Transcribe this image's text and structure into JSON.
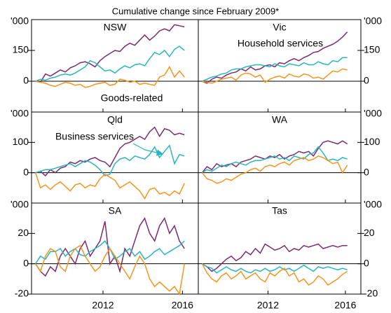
{
  "chart_data": {
    "type": "line",
    "subtitle": "Cumulative change since February 2009*",
    "x": [
      2009.1,
      2009.35,
      2009.6,
      2009.85,
      2010.1,
      2010.35,
      2010.6,
      2010.85,
      2011.1,
      2011.35,
      2011.6,
      2011.85,
      2012.1,
      2012.35,
      2012.6,
      2012.85,
      2013.1,
      2013.35,
      2013.6,
      2013.85,
      2014.1,
      2014.35,
      2014.6,
      2014.85,
      2015.1,
      2015.35,
      2015.6,
      2015.85,
      2016.1,
      2016.35,
      2016.6
    ],
    "xlim": [
      2008.9,
      2017.3
    ],
    "xticks": [
      {
        "value": 2012.5,
        "label": "2012"
      },
      {
        "value": 2016.5,
        "label": "2016"
      }
    ],
    "panels": [
      {
        "title": "NSW",
        "unit": "'000",
        "ylim": [
          -150,
          300
        ],
        "yticks": [
          0,
          150
        ],
        "series": [
          {
            "color": "#7d2a6f",
            "values": [
              0,
              -5,
              35,
              25,
              40,
              55,
              45,
              65,
              75,
              90,
              95,
              85,
              70,
              100,
              120,
              135,
              150,
              145,
              170,
              185,
              175,
              200,
              225,
              200,
              220,
              245,
              255,
              245,
              275,
              270,
              265
            ]
          },
          {
            "color": "#29b5c0",
            "values": [
              0,
              10,
              5,
              15,
              20,
              30,
              35,
              30,
              40,
              55,
              70,
              100,
              90,
              70,
              50,
              55,
              40,
              60,
              75,
              65,
              80,
              85,
              75,
              110,
              140,
              130,
              150,
              120,
              155,
              170,
              150
            ]
          },
          {
            "name": "Goods-related",
            "color": "#f7941d",
            "values": [
              0,
              -5,
              -10,
              -20,
              -25,
              -15,
              -5,
              -10,
              -20,
              -15,
              -30,
              -25,
              -15,
              -10,
              -5,
              -20,
              -15,
              10,
              5,
              -5,
              0,
              -15,
              -10,
              -15,
              -20,
              20,
              30,
              70,
              20,
              50,
              20
            ]
          }
        ]
      },
      {
        "title": "Vic",
        "unit": "'000",
        "ylim": [
          -150,
          300
        ],
        "yticks": [
          0,
          150
        ],
        "series": [
          {
            "name": "Household services",
            "color": "#7d2a6f",
            "values": [
              0,
              -10,
              10,
              20,
              15,
              30,
              40,
              45,
              60,
              50,
              70,
              55,
              60,
              75,
              80,
              70,
              90,
              85,
              100,
              110,
              100,
              115,
              125,
              140,
              145,
              160,
              170,
              180,
              195,
              215,
              240
            ]
          },
          {
            "color": "#29b5c0",
            "values": [
              0,
              10,
              20,
              25,
              35,
              40,
              55,
              60,
              60,
              70,
              75,
              80,
              80,
              75,
              70,
              85,
              75,
              70,
              85,
              80,
              75,
              90,
              80,
              80,
              95,
              85,
              80,
              100,
              95,
              115,
              115
            ]
          },
          {
            "color": "#f7941d",
            "values": [
              0,
              -5,
              -10,
              0,
              10,
              15,
              20,
              5,
              30,
              40,
              35,
              20,
              30,
              -5,
              10,
              20,
              25,
              15,
              35,
              25,
              20,
              35,
              30,
              15,
              20,
              10,
              30,
              50,
              45,
              60,
              55
            ]
          }
        ]
      },
      {
        "title": "Qld",
        "unit": "'000",
        "ylim": [
          -100,
          200
        ],
        "yticks": [
          0,
          100
        ],
        "series": [
          {
            "color": "#7d2a6f",
            "values": [
              0,
              5,
              -10,
              10,
              0,
              15,
              20,
              35,
              30,
              40,
              35,
              45,
              50,
              40,
              35,
              20,
              50,
              80,
              95,
              100,
              110,
              120,
              110,
              135,
              150,
              120,
              145,
              140,
              125,
              130,
              125
            ]
          },
          {
            "name": "Business services",
            "color": "#29b5c0",
            "values": [
              0,
              5,
              10,
              10,
              15,
              20,
              25,
              30,
              20,
              30,
              40,
              35,
              25,
              10,
              -10,
              -5,
              30,
              45,
              50,
              40,
              55,
              50,
              45,
              60,
              85,
              50,
              70,
              90,
              30,
              60,
              55
            ]
          },
          {
            "color": "#f7941d",
            "values": [
              0,
              -50,
              -40,
              -55,
              -40,
              -30,
              -45,
              -60,
              -40,
              -35,
              -50,
              -40,
              -45,
              -20,
              -5,
              -15,
              -25,
              -50,
              -40,
              -30,
              -45,
              -60,
              -85,
              -55,
              -50,
              -70,
              -65,
              -75,
              -60,
              -70,
              -35
            ]
          }
        ]
      },
      {
        "title": "WA",
        "unit": "'000",
        "ylim": [
          -100,
          200
        ],
        "yticks": [
          0,
          100
        ],
        "series": [
          {
            "color": "#7d2a6f",
            "values": [
              0,
              20,
              10,
              30,
              20,
              25,
              30,
              20,
              35,
              40,
              45,
              55,
              50,
              45,
              55,
              50,
              60,
              45,
              55,
              60,
              70,
              65,
              70,
              55,
              80,
              100,
              105,
              100,
              95,
              105,
              95
            ]
          },
          {
            "color": "#29b5c0",
            "values": [
              0,
              10,
              5,
              15,
              25,
              20,
              30,
              35,
              30,
              25,
              35,
              40,
              40,
              45,
              50,
              55,
              45,
              50,
              40,
              55,
              50,
              45,
              60,
              65,
              85,
              65,
              40,
              45,
              40,
              50,
              45
            ]
          },
          {
            "color": "#f7941d",
            "values": [
              0,
              -20,
              -25,
              -35,
              -30,
              -20,
              -25,
              -15,
              -5,
              0,
              10,
              15,
              5,
              20,
              25,
              20,
              30,
              35,
              25,
              40,
              45,
              50,
              40,
              45,
              55,
              50,
              40,
              30,
              35,
              0,
              25
            ]
          }
        ]
      },
      {
        "title": "SA",
        "unit": "'000",
        "ylim": [
          -20,
          40
        ],
        "yticks": [
          -20,
          0,
          20
        ],
        "series": [
          {
            "color": "#7d2a6f",
            "values": [
              0,
              -5,
              -8,
              -2,
              -5,
              5,
              10,
              5,
              0,
              10,
              15,
              5,
              10,
              15,
              28,
              0,
              5,
              -5,
              10,
              5,
              15,
              25,
              30,
              20,
              15,
              25,
              30,
              20,
              25,
              15,
              10
            ]
          },
          {
            "color": "#29b5c0",
            "values": [
              0,
              5,
              3,
              8,
              8,
              10,
              5,
              8,
              10,
              6,
              5,
              8,
              10,
              12,
              15,
              10,
              3,
              5,
              8,
              10,
              5,
              8,
              3,
              5,
              8,
              10,
              6,
              8,
              10,
              12,
              15
            ]
          },
          {
            "color": "#f7941d",
            "values": [
              0,
              -5,
              5,
              10,
              8,
              -2,
              -5,
              5,
              10,
              12,
              5,
              0,
              -5,
              -2,
              5,
              10,
              5,
              0,
              -5,
              -10,
              -2,
              5,
              0,
              -10,
              -15,
              -12,
              -15,
              -18,
              -15,
              -20,
              0
            ]
          }
        ]
      },
      {
        "title": "Tas",
        "unit": "'000",
        "ylim": [
          -20,
          40
        ],
        "yticks": [
          -20,
          0,
          20
        ],
        "series": [
          {
            "color": "#7d2a6f",
            "values": [
              0,
              -2,
              -5,
              -3,
              0,
              3,
              5,
              2,
              4,
              8,
              6,
              10,
              7,
              13,
              11,
              9,
              10,
              12,
              8,
              10,
              9,
              12,
              11,
              12,
              13,
              10,
              11,
              12,
              11,
              12,
              12
            ]
          },
          {
            "color": "#29b5c0",
            "values": [
              0,
              -2,
              -3,
              -6,
              -4,
              -2,
              -4,
              -5,
              -3,
              -5,
              -6,
              -4,
              -5,
              -3,
              -5,
              -4,
              -2,
              -4,
              -3,
              -5,
              -3,
              -1,
              -3,
              -5,
              -2,
              -3,
              -2,
              -3,
              -4,
              -3,
              -4
            ]
          },
          {
            "color": "#f7941d",
            "values": [
              0,
              -6,
              -10,
              -12,
              -8,
              -6,
              -10,
              -8,
              -5,
              -10,
              -8,
              -6,
              -10,
              -12,
              -6,
              -8,
              -5,
              -3,
              -8,
              -6,
              -12,
              -10,
              -14,
              -12,
              -8,
              -10,
              -14,
              -12,
              -10,
              -7,
              -5
            ]
          }
        ]
      }
    ]
  }
}
